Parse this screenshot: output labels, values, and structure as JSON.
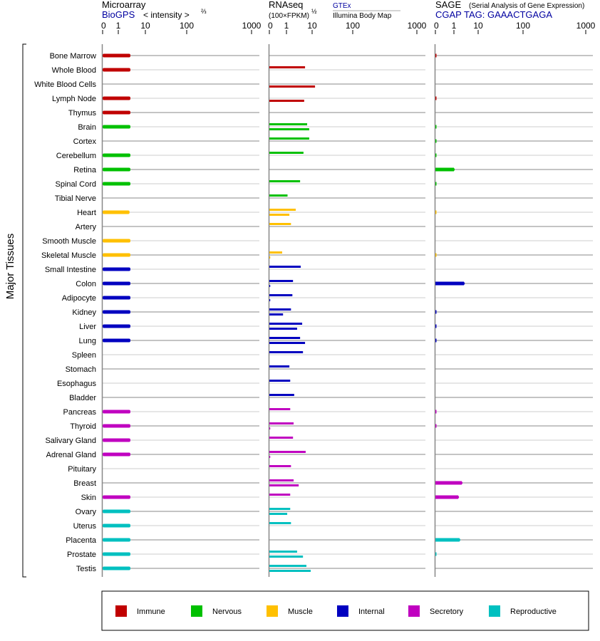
{
  "panels": {
    "microarray": {
      "title": "Microarray",
      "source": "BioGPS",
      "unit": "< intensity >",
      "unit_sup": "⅔",
      "ticks": [
        "0",
        "1",
        "10",
        "100",
        "1000"
      ]
    },
    "rnaseq": {
      "title": "RNAseq",
      "unit": "(100×FPKM)",
      "unit_sup": "½",
      "source1": "GTEx",
      "source2": "Illumina Body Map",
      "ticks": [
        "0",
        "1",
        "10",
        "100",
        "1000"
      ]
    },
    "sage": {
      "title": "SAGE",
      "subtitle": "(Serial Analysis of Gene Expression)",
      "tag": "CGAP TAG: GAAACTGAGA",
      "ticks": [
        "0",
        "1",
        "10",
        "100",
        "1000"
      ]
    }
  },
  "y_group_label": "Major Tissues",
  "legend": [
    {
      "group": "immune",
      "label": "Immune",
      "color": "#c00000"
    },
    {
      "group": "nervous",
      "label": "Nervous",
      "color": "#00c000"
    },
    {
      "group": "muscle",
      "label": "Muscle",
      "color": "#ffc000"
    },
    {
      "group": "internal",
      "label": "Internal",
      "color": "#0000c0"
    },
    {
      "group": "secretory",
      "label": "Secretory",
      "color": "#c000c0"
    },
    {
      "group": "reproductive",
      "label": "Reproductive",
      "color": "#00c0c0"
    }
  ],
  "chart_data": {
    "type": "bar",
    "orientation": "horizontal",
    "xscale_ticks": [
      0,
      1,
      10,
      100,
      1000
    ],
    "series_keys": [
      "microarray",
      "gtex",
      "illumina",
      "sage"
    ],
    "tissues": [
      {
        "name": "Bone Marrow",
        "group": "immune",
        "microarray": 2.8,
        "gtex": null,
        "illumina": null,
        "sage": 0.05
      },
      {
        "name": "Whole Blood",
        "group": "immune",
        "microarray": 2.8,
        "gtex": 5.3,
        "illumina": null,
        "sage": null
      },
      {
        "name": "White Blood Cells",
        "group": "immune",
        "microarray": null,
        "gtex": null,
        "illumina": 11.8,
        "sage": null
      },
      {
        "name": "Lymph Node",
        "group": "immune",
        "microarray": 2.8,
        "gtex": null,
        "illumina": 4.9,
        "sage": 0.05
      },
      {
        "name": "Thymus",
        "group": "immune",
        "microarray": 2.8,
        "gtex": null,
        "illumina": null,
        "sage": null
      },
      {
        "name": "Brain",
        "group": "nervous",
        "microarray": 2.8,
        "gtex": 6.4,
        "illumina": 7.7,
        "sage": 0.05
      },
      {
        "name": "Cortex",
        "group": "nervous",
        "microarray": null,
        "gtex": 7.7,
        "illumina": null,
        "sage": 0.05
      },
      {
        "name": "Cerebellum",
        "group": "nervous",
        "microarray": 2.8,
        "gtex": 4.6,
        "illumina": null,
        "sage": 0.05
      },
      {
        "name": "Retina",
        "group": "nervous",
        "microarray": 2.8,
        "gtex": null,
        "illumina": null,
        "sage": 1.0
      },
      {
        "name": "Spinal Cord",
        "group": "nervous",
        "microarray": 2.8,
        "gtex": 3.4,
        "illumina": null,
        "sage": 0.05
      },
      {
        "name": "Tibial Nerve",
        "group": "nervous",
        "microarray": null,
        "gtex": 1.1,
        "illumina": null,
        "sage": null
      },
      {
        "name": "Heart",
        "group": "muscle",
        "microarray": 2.6,
        "gtex": 2.3,
        "illumina": 1.3,
        "sage": 0.05
      },
      {
        "name": "Artery",
        "group": "muscle",
        "microarray": null,
        "gtex": 1.5,
        "illumina": null,
        "sage": null
      },
      {
        "name": "Smooth Muscle",
        "group": "muscle",
        "microarray": 2.8,
        "gtex": null,
        "illumina": null,
        "sage": null
      },
      {
        "name": "Skeletal Muscle",
        "group": "muscle",
        "microarray": 2.8,
        "gtex": 0.75,
        "illumina": 0.05,
        "sage": 0.05
      },
      {
        "name": "Small Intestine",
        "group": "internal",
        "microarray": 2.8,
        "gtex": 3.6,
        "illumina": null,
        "sage": null
      },
      {
        "name": "Colon",
        "group": "internal",
        "microarray": 2.8,
        "gtex": 1.8,
        "illumina": 0.05,
        "sage": 2.6
      },
      {
        "name": "Adipocyte",
        "group": "internal",
        "microarray": 2.8,
        "gtex": 1.7,
        "illumina": 0.05,
        "sage": null
      },
      {
        "name": "Kidney",
        "group": "internal",
        "microarray": 2.8,
        "gtex": 1.5,
        "illumina": 0.8,
        "sage": 0.05
      },
      {
        "name": "Liver",
        "group": "internal",
        "microarray": 2.8,
        "gtex": 4.1,
        "illumina": 2.6,
        "sage": 0.05
      },
      {
        "name": "Lung",
        "group": "internal",
        "microarray": 2.8,
        "gtex": 3.4,
        "illumina": 5.3,
        "sage": 0.05
      },
      {
        "name": "Spleen",
        "group": "internal",
        "microarray": null,
        "gtex": 4.4,
        "illumina": null,
        "sage": null
      },
      {
        "name": "Stomach",
        "group": "internal",
        "microarray": null,
        "gtex": 1.3,
        "illumina": null,
        "sage": null
      },
      {
        "name": "Esophagus",
        "group": "internal",
        "microarray": null,
        "gtex": 1.4,
        "illumina": null,
        "sage": null
      },
      {
        "name": "Bladder",
        "group": "internal",
        "microarray": null,
        "gtex": 2.0,
        "illumina": null,
        "sage": null
      },
      {
        "name": "Pancreas",
        "group": "secretory",
        "microarray": 2.8,
        "gtex": 1.4,
        "illumina": null,
        "sage": 0.05
      },
      {
        "name": "Thyroid",
        "group": "secretory",
        "microarray": 2.8,
        "gtex": 1.9,
        "illumina": 0.05,
        "sage": 0.05
      },
      {
        "name": "Salivary Gland",
        "group": "secretory",
        "microarray": 2.8,
        "gtex": 1.8,
        "illumina": null,
        "sage": null
      },
      {
        "name": "Adrenal Gland",
        "group": "secretory",
        "microarray": 2.8,
        "gtex": 5.6,
        "illumina": 0.05,
        "sage": null
      },
      {
        "name": "Pituitary",
        "group": "secretory",
        "microarray": null,
        "gtex": 1.5,
        "illumina": null,
        "sage": null
      },
      {
        "name": "Breast",
        "group": "secretory",
        "microarray": null,
        "gtex": 1.9,
        "illumina": 3.0,
        "sage": 2.1
      },
      {
        "name": "Skin",
        "group": "secretory",
        "microarray": 2.8,
        "gtex": 1.4,
        "illumina": null,
        "sage": 1.5
      },
      {
        "name": "Ovary",
        "group": "reproductive",
        "microarray": 2.8,
        "gtex": 1.4,
        "illumina": 1.07,
        "sage": null
      },
      {
        "name": "Uterus",
        "group": "reproductive",
        "microarray": 2.8,
        "gtex": 1.5,
        "illumina": null,
        "sage": null
      },
      {
        "name": "Placenta",
        "group": "reproductive",
        "microarray": 2.8,
        "gtex": null,
        "illumina": null,
        "sage": 1.7
      },
      {
        "name": "Prostate",
        "group": "reproductive",
        "microarray": 2.8,
        "gtex": 2.6,
        "illumina": 4.4,
        "sage": 0.05
      },
      {
        "name": "Testis",
        "group": "reproductive",
        "microarray": 2.8,
        "gtex": 6.0,
        "illumina": 8.8,
        "sage": null
      }
    ]
  }
}
